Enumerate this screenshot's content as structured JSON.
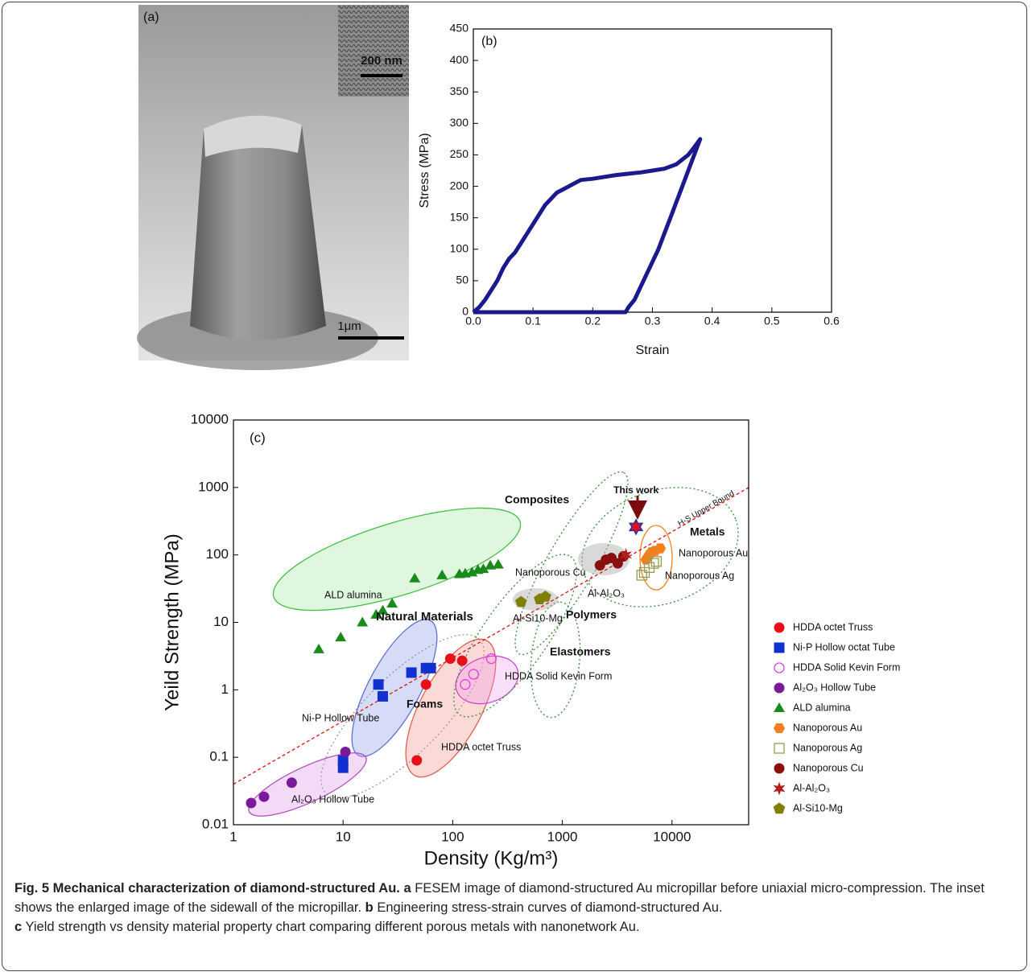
{
  "figure": {
    "panel_a": {
      "panel_label": "(a)",
      "inset_scale": "200 nm",
      "scale": "1μm"
    },
    "caption": {
      "title": "Fig. 5 Mechanical characterization of diamond-structured Au.",
      "a_label": "a",
      "a_text": "FESEM image of diamond-structured Au micropillar before uniaxial micro-compression. The inset shows the enlarged image of the sidewall of the micropillar.",
      "b_label": "b",
      "b_text": "Engineering stress-strain curves of diamond-structured Au.",
      "c_label": "c",
      "c_text": "Yield strength vs density material property chart comparing different porous metals with nanonetwork Au."
    }
  },
  "chart_data": [
    {
      "type": "line",
      "panel_label": "(b)",
      "x_label": "Strain",
      "y_label": "Stress (MPa)",
      "color": "#1a1a8c",
      "x": [
        0,
        0.01,
        0.02,
        0.03,
        0.04,
        0.05,
        0.06,
        0.07,
        0.08,
        0.09,
        0.1,
        0.11,
        0.12,
        0.13,
        0.14,
        0.15,
        0.16,
        0.17,
        0.18,
        0.2,
        0.22,
        0.24,
        0.26,
        0.28,
        0.3,
        0.32,
        0.34,
        0.36,
        0.37,
        0.38,
        0.37,
        0.36,
        0.35,
        0.34,
        0.33,
        0.32,
        0.31,
        0.3,
        0.29,
        0.28,
        0.27,
        0.26,
        0.255,
        0.2,
        0.1,
        0
      ],
      "values": [
        0,
        8,
        20,
        35,
        50,
        70,
        85,
        95,
        110,
        125,
        140,
        155,
        170,
        180,
        190,
        195,
        200,
        205,
        210,
        212,
        215,
        218,
        220,
        222,
        225,
        228,
        235,
        250,
        262,
        275,
        250,
        225,
        200,
        175,
        150,
        125,
        100,
        80,
        60,
        40,
        20,
        8,
        0,
        0,
        0,
        0
      ],
      "xlim": [
        0,
        0.6
      ],
      "xticks": [
        {
          "value": 0,
          "label": "0.0"
        },
        0.1,
        0.2,
        0.3,
        0.4,
        0.5,
        0.6
      ],
      "ylim": [
        0,
        450
      ],
      "yticks": [
        0,
        50,
        100,
        150,
        200,
        250,
        300,
        350,
        400,
        450
      ]
    },
    {
      "type": "scatter",
      "panel_label": "(c)",
      "x_label": "Density (Kg/m³)",
      "y_label": "Yeild Strength (MPa)",
      "x_scale": "log",
      "y_scale": "log",
      "xlim": [
        1,
        50000
      ],
      "xticks": [
        1,
        10,
        100,
        1000,
        10000
      ],
      "ylim": [
        0.01,
        10000
      ],
      "yticks": [
        0.01,
        0.1,
        1,
        10,
        100,
        1000,
        10000
      ],
      "series": [
        {
          "name": "HDDA octet Truss",
          "color": "#e8101a",
          "marker": "circle",
          "x": [
            47,
            57,
            95,
            122
          ],
          "values": [
            0.09,
            1.2,
            2.9,
            2.7
          ]
        },
        {
          "name": "Ni-P Hollow octat Tube",
          "color": "#1030d0",
          "marker": "square",
          "x": [
            10,
            10,
            21,
            23,
            42,
            57,
            63
          ],
          "values": [
            0.07,
            0.09,
            1.2,
            0.8,
            1.8,
            2.1,
            2.1
          ]
        },
        {
          "name": "HDDA Solid Kevin Form",
          "color": "#e040e0",
          "marker": "circle-open",
          "x": [
            130,
            155,
            225
          ],
          "values": [
            1.2,
            1.7,
            2.9
          ]
        },
        {
          "name": "Al₂O₃ Hollow Tube",
          "color": "#7a1a9a",
          "marker": "circle",
          "x": [
            1.45,
            1.9,
            3.4,
            10.5
          ],
          "values": [
            0.021,
            0.026,
            0.042,
            0.12
          ]
        },
        {
          "name": "ALD alumina",
          "color": "#1a8a1a",
          "marker": "triangle",
          "x": [
            6,
            9.5,
            15,
            20,
            23,
            28,
            45,
            80,
            115,
            130,
            150,
            170,
            190,
            220,
            260
          ],
          "values": [
            4,
            6,
            10,
            13,
            15,
            19,
            45,
            50,
            52,
            53,
            55,
            60,
            62,
            70,
            72
          ]
        },
        {
          "name": "Nanoporous Au",
          "color": "#f08020",
          "marker": "hexagon",
          "x": [
            5800,
            6200,
            6500,
            7000,
            7800
          ],
          "values": [
            85,
            100,
            110,
            115,
            125
          ]
        },
        {
          "name": "Nanoporous Ag",
          "color": "#9a9a50",
          "marker": "square-open",
          "x": [
            5300,
            5600,
            6200,
            6800,
            7200
          ],
          "values": [
            50,
            55,
            65,
            75,
            80
          ]
        },
        {
          "name": "Nanoporous Cu",
          "color": "#8a1010",
          "marker": "circle",
          "x": [
            2200,
            2500,
            2800,
            3200,
            3600
          ],
          "values": [
            70,
            85,
            90,
            75,
            95
          ]
        },
        {
          "name": "Al-Al₂O₃",
          "color": "#b02020",
          "marker": "star",
          "x": [
            3800
          ],
          "values": [
            100
          ]
        },
        {
          "name": "Al-Si10-Mg",
          "color": "#808000",
          "marker": "pentagon",
          "x": [
            420,
            620,
            700
          ],
          "values": [
            20,
            22,
            24
          ]
        }
      ],
      "highlight": {
        "name": "This work",
        "x": 4700,
        "y": 260
      },
      "annotations": [
        "Composites",
        "Metals",
        "Nanoporous Au",
        "Nanoporous Cu",
        "Nanoporous Ag",
        "ALD alumina",
        "Al-Al₂O₃",
        "Al-Si10-Mg",
        "Natural Materials",
        "Polymers",
        "Elastomers",
        "HDDA Solid Kevin Form",
        "Foams",
        "Ni-P Hollow Tube",
        "HDDA octet Truss",
        "Al₂O₃ Hollow Tube",
        "H-S Upper Bound"
      ]
    }
  ]
}
